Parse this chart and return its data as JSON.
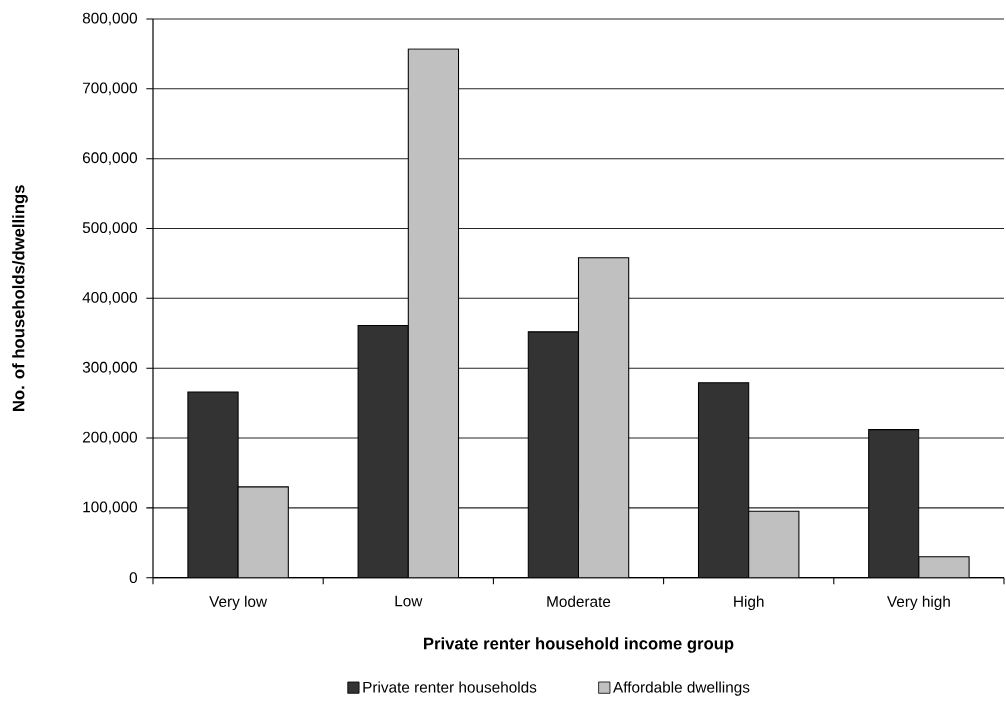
{
  "chart_data": {
    "type": "bar",
    "xlabel": "Private renter household income group",
    "ylabel": "No. of households/dwellings",
    "categories": [
      "Very low",
      "Low",
      "Moderate",
      "High",
      "Very high"
    ],
    "series": [
      {
        "name": "Private renter households",
        "color": "#333333",
        "values": [
          266000,
          361000,
          352000,
          279000,
          212000
        ]
      },
      {
        "name": "Affordable dwellings",
        "color": "#c0c0c0",
        "values": [
          130000,
          757000,
          458000,
          95000,
          30000
        ]
      }
    ],
    "ylim": [
      0,
      800000
    ],
    "yticks": [
      0,
      {
        "value": 100000,
        "label": "100,000"
      },
      {
        "value": 200000,
        "label": "200,000"
      },
      {
        "value": 300000,
        "label": "300,000"
      },
      {
        "value": 400000,
        "label": "400,000"
      },
      {
        "value": 500000,
        "label": "500,000"
      },
      {
        "value": 600000,
        "label": "600,000"
      },
      {
        "value": 700000,
        "label": "700,000"
      },
      {
        "value": 800000,
        "label": "800,000"
      }
    ],
    "grid": "y",
    "legend": "bottom"
  }
}
